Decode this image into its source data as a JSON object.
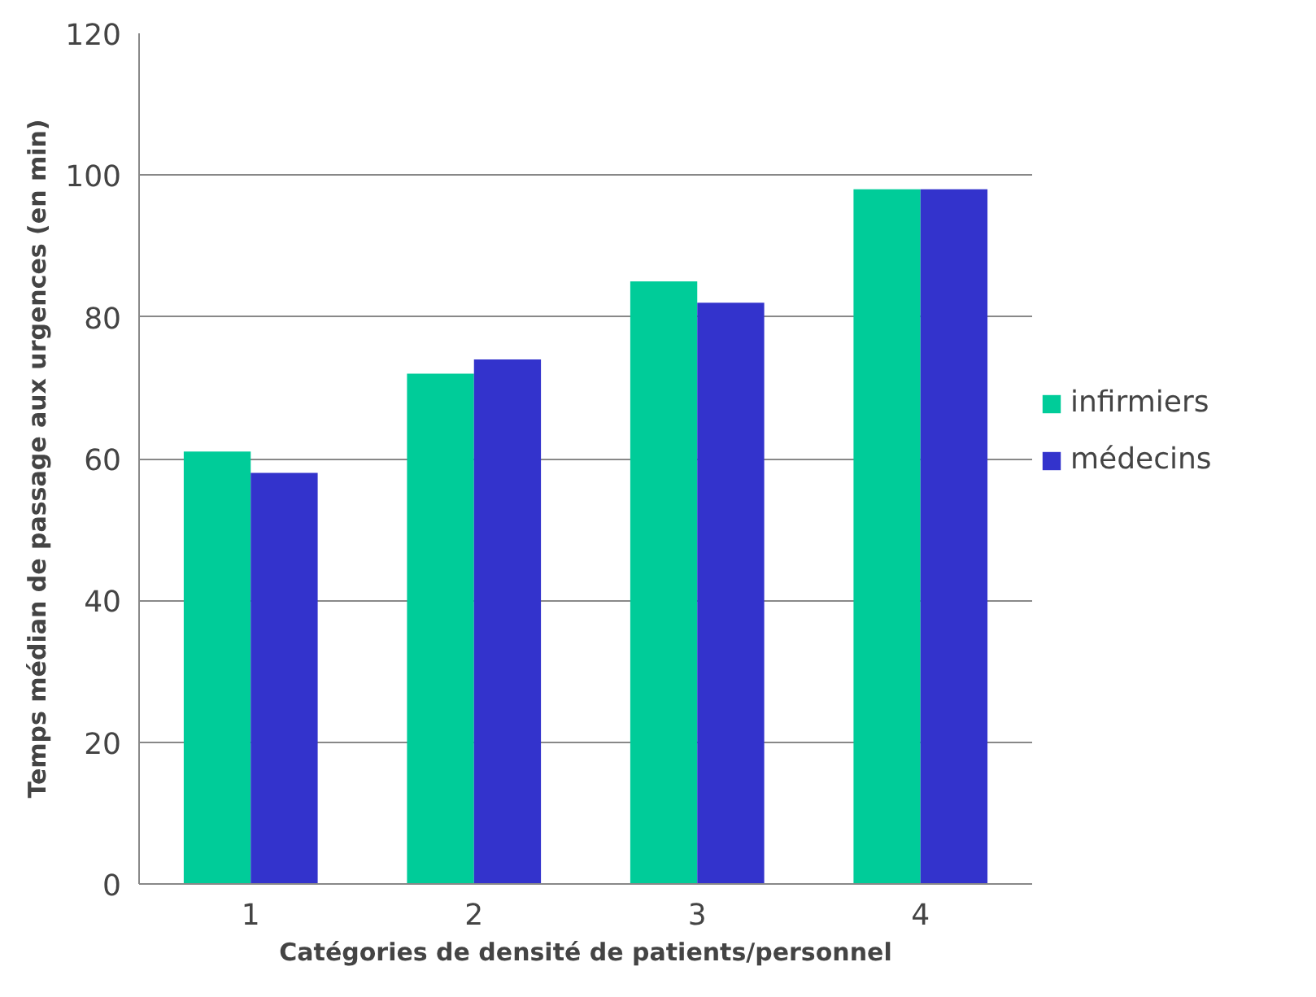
{
  "chart_data": {
    "type": "bar",
    "xlabel": "Catégories de densité de patients/personnel",
    "ylabel": "Temps médian de passage aux urgences (en min)",
    "categories": [
      "1",
      "2",
      "3",
      "4"
    ],
    "series": [
      {
        "name": "infirmiers",
        "color": "#00cc99",
        "values": [
          61,
          72,
          85,
          98
        ]
      },
      {
        "name": "médecins",
        "color": "#3333cc",
        "values": [
          58,
          74,
          82,
          98
        ]
      }
    ],
    "ylim": [
      0,
      120
    ],
    "yticks": [
      0,
      20,
      40,
      60,
      80,
      100,
      120
    ],
    "grid": "y",
    "legend": "right"
  }
}
